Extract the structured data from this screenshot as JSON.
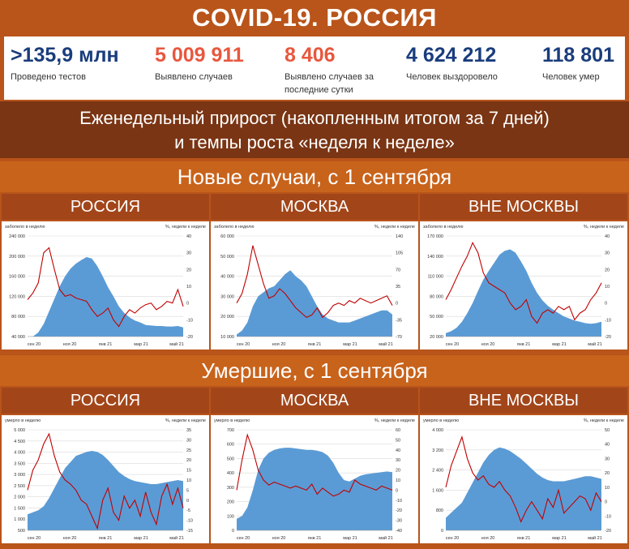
{
  "title": "COVID-19. РОССИЯ",
  "stats": [
    {
      "value": ">135,9 млн",
      "label": "Проведено тестов",
      "color": "#1a3d7c"
    },
    {
      "value": "5 009 911",
      "label": "Выявлено случаев",
      "color": "#e8573e"
    },
    {
      "value": "8 406",
      "label": "Выявлено случаев за последние сутки",
      "color": "#e8573e"
    },
    {
      "value": "4 624 212",
      "label": "Человек выздоровело",
      "color": "#1a3d7c"
    },
    {
      "value": "118 801",
      "label": "Человек умер",
      "color": "#1a3d7c"
    }
  ],
  "weekly_heading": [
    "Еженедельный прирост (накопленным итогом за 7 дней)",
    "и темпы роста «неделя к неделе»"
  ],
  "sections": {
    "cases": "Новые случаи, с 1 сентября",
    "deaths": "Умершие, с 1 сентября"
  },
  "colors": {
    "area": "#5b9bd5",
    "line": "#c00000"
  },
  "chart_data": [
    {
      "type": "area",
      "panel": "РОССИЯ",
      "ylabel": "заболело в неделю",
      "y2label": "%, недели к неделе",
      "yticks": [
        "240 000",
        "200 000",
        "160 000",
        "120 000",
        "80 000",
        "40 000"
      ],
      "ylim": [
        40000,
        240000
      ],
      "y2ticks": [
        "40",
        "30",
        "20",
        "10",
        "0",
        "-10",
        "-20"
      ],
      "y2lim": [
        -20,
        40
      ],
      "xticks": [
        "сен 20",
        "ноя 20",
        "янв 21",
        "мар 21",
        "май 21"
      ],
      "series": [
        {
          "kind": "area",
          "values": [
            35000,
            40000,
            48000,
            65000,
            90000,
            115000,
            140000,
            160000,
            175000,
            185000,
            192000,
            198000,
            195000,
            180000,
            160000,
            138000,
            120000,
            100000,
            87000,
            78000,
            72000,
            68000,
            63000,
            62000,
            61000,
            61000,
            60000,
            60000,
            61000,
            58000
          ]
        },
        {
          "kind": "line",
          "values": [
            2,
            6,
            12,
            30,
            33,
            20,
            8,
            4,
            5,
            3,
            2,
            1,
            -4,
            -8,
            -6,
            -3,
            -10,
            -14,
            -8,
            -4,
            -6,
            -3,
            -1,
            0,
            -4,
            -2,
            1,
            0,
            8,
            -2
          ]
        }
      ]
    },
    {
      "type": "area",
      "panel": "МОСКВА",
      "ylabel": "заболело в неделю",
      "y2label": "%, недели к неделе",
      "yticks": [
        "60 000",
        "50 000",
        "40 000",
        "30 000",
        "20 000",
        "10 000"
      ],
      "ylim": [
        10000,
        60000
      ],
      "y2ticks": [
        "140",
        "105",
        "70",
        "35",
        "0",
        "-35",
        "-70"
      ],
      "y2lim": [
        -70,
        140
      ],
      "xticks": [
        "сен 20",
        "ноя 20",
        "янв 21",
        "мар 21",
        "май 21"
      ],
      "series": [
        {
          "kind": "area",
          "values": [
            11000,
            13000,
            17000,
            25000,
            30000,
            32000,
            34000,
            35000,
            38000,
            41000,
            43000,
            40000,
            38000,
            35000,
            30000,
            25000,
            21000,
            19000,
            18000,
            17000,
            17000,
            17000,
            18000,
            19000,
            20000,
            21000,
            22000,
            23000,
            23000,
            21000
          ]
        },
        {
          "kind": "line",
          "values": [
            0,
            20,
            60,
            120,
            80,
            40,
            10,
            15,
            30,
            20,
            5,
            -10,
            -20,
            -30,
            -25,
            -10,
            -30,
            -20,
            -5,
            0,
            -5,
            5,
            0,
            10,
            5,
            0,
            5,
            10,
            15,
            -5
          ]
        }
      ]
    },
    {
      "type": "area",
      "panel": "ВНЕ МОСКВЫ",
      "ylabel": "заболело в неделю",
      "y2label": "%, недели к неделе",
      "yticks": [
        "170 000",
        "140 000",
        "110 000",
        "80 000",
        "50 000",
        "20 000"
      ],
      "ylim": [
        20000,
        170000
      ],
      "y2ticks": [
        "40",
        "30",
        "20",
        "10",
        "0",
        "-10",
        "-20"
      ],
      "y2lim": [
        -20,
        40
      ],
      "xticks": [
        "сен 20",
        "ноя 20",
        "янв 21",
        "мар 21",
        "май 21"
      ],
      "series": [
        {
          "kind": "area",
          "values": [
            25000,
            28000,
            33000,
            42000,
            55000,
            70000,
            88000,
            105000,
            118000,
            130000,
            142000,
            148000,
            150000,
            145000,
            132000,
            118000,
            100000,
            85000,
            74000,
            66000,
            60000,
            55000,
            50000,
            47000,
            44000,
            42000,
            40000,
            39000,
            40000,
            42000
          ]
        },
        {
          "kind": "line",
          "values": [
            2,
            8,
            15,
            22,
            28,
            36,
            30,
            18,
            12,
            10,
            8,
            6,
            0,
            -4,
            -2,
            2,
            -8,
            -12,
            -6,
            -4,
            -6,
            -2,
            -4,
            -2,
            -10,
            -6,
            -4,
            2,
            6,
            12
          ]
        }
      ]
    },
    {
      "type": "area",
      "panel": "РОССИЯ",
      "ylabel": "умерло в неделю",
      "y2label": "%, недели к неделе",
      "yticks": [
        "5 000",
        "4 500",
        "4 000",
        "3 500",
        "3 000",
        "2 500",
        "2 000",
        "1 500",
        "1 000",
        "500"
      ],
      "ylim": [
        0,
        5000
      ],
      "y2ticks": [
        "35",
        "30",
        "25",
        "20",
        "15",
        "10",
        "5",
        "0",
        "-5",
        "-10",
        "-15"
      ],
      "y2lim": [
        -15,
        35
      ],
      "xticks": [
        "сен 20",
        "ноя 20",
        "янв 21",
        "мар 21",
        "май 21"
      ],
      "series": [
        {
          "kind": "area",
          "values": [
            800,
            900,
            1000,
            1200,
            1600,
            2100,
            2600,
            3100,
            3400,
            3700,
            3800,
            3900,
            3950,
            3900,
            3750,
            3500,
            3200,
            2900,
            2700,
            2550,
            2450,
            2400,
            2350,
            2300,
            2300,
            2350,
            2400,
            2450,
            2500,
            2450
          ]
        },
        {
          "kind": "line",
          "values": [
            5,
            15,
            20,
            28,
            33,
            22,
            14,
            10,
            8,
            5,
            0,
            -2,
            -8,
            -14,
            0,
            6,
            -6,
            -10,
            2,
            -4,
            0,
            -8,
            4,
            -6,
            -12,
            2,
            8,
            -2,
            6,
            -4
          ]
        }
      ]
    },
    {
      "type": "area",
      "panel": "МОСКВА",
      "ylabel": "умерло в неделю",
      "y2label": "%, недели к неделе",
      "yticks": [
        "700",
        "600",
        "500",
        "400",
        "300",
        "200",
        "100",
        "0"
      ],
      "ylim": [
        0,
        700
      ],
      "y2ticks": [
        "60",
        "50",
        "40",
        "30",
        "20",
        "10",
        "0",
        "-10",
        "-20",
        "-30",
        "-40"
      ],
      "y2lim": [
        -40,
        60
      ],
      "xticks": [
        "сен 20",
        "ноя 20",
        "янв 21",
        "мар 21",
        "май 21"
      ],
      "series": [
        {
          "kind": "area",
          "values": [
            80,
            100,
            160,
            280,
            420,
            500,
            540,
            560,
            570,
            575,
            575,
            570,
            565,
            560,
            560,
            555,
            545,
            520,
            470,
            400,
            350,
            340,
            360,
            380,
            390,
            395,
            400,
            405,
            410,
            405
          ]
        },
        {
          "kind": "line",
          "values": [
            0,
            30,
            55,
            40,
            20,
            10,
            5,
            8,
            6,
            4,
            2,
            4,
            2,
            0,
            6,
            -4,
            2,
            -2,
            -6,
            -4,
            0,
            -2,
            10,
            6,
            4,
            2,
            0,
            4,
            2,
            0
          ]
        }
      ]
    },
    {
      "type": "area",
      "panel": "ВНЕ МОСКВЫ",
      "ylabel": "умерло в неделю",
      "y2label": "%, недели к неделе",
      "yticks": [
        "4 000",
        "3 200",
        "2 400",
        "1 600",
        "800",
        "0"
      ],
      "ylim": [
        0,
        4000
      ],
      "y2ticks": [
        "50",
        "40",
        "30",
        "20",
        "10",
        "0",
        "-10",
        "-20"
      ],
      "y2lim": [
        -20,
        50
      ],
      "xticks": [
        "сен 20",
        "ноя 20",
        "янв 21",
        "мар 21",
        "май 21"
      ],
      "series": [
        {
          "kind": "area",
          "values": [
            500,
            700,
            900,
            1100,
            1500,
            1900,
            2300,
            2700,
            3000,
            3200,
            3300,
            3250,
            3150,
            3000,
            2850,
            2650,
            2450,
            2250,
            2100,
            2000,
            1950,
            1950,
            1950,
            2000,
            2050,
            2100,
            2150,
            2150,
            2100,
            2050
          ]
        },
        {
          "kind": "line",
          "values": [
            10,
            25,
            35,
            45,
            30,
            20,
            15,
            18,
            12,
            10,
            14,
            8,
            4,
            -4,
            -14,
            -6,
            0,
            -6,
            -12,
            2,
            -4,
            8,
            -8,
            -4,
            0,
            4,
            2,
            -6,
            6,
            0
          ]
        }
      ]
    }
  ]
}
